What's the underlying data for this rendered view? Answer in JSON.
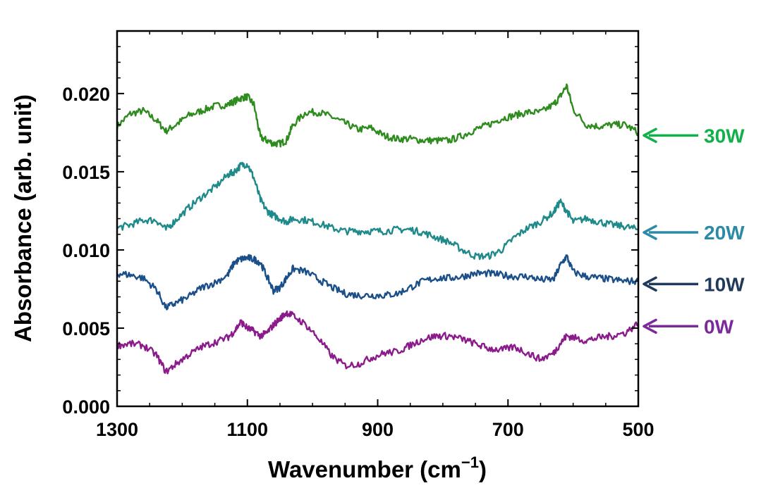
{
  "chart_data": {
    "type": "line",
    "xlabel": "Wavenumber (cm",
    "xlabel_sup": "−1",
    "xlabel_close": ")",
    "ylabel": "Absorbance (arb. unit)",
    "xlim": [
      1300,
      500
    ],
    "ylim": [
      0,
      0.024
    ],
    "x_reversed": true,
    "x_ticks": [
      1300,
      1100,
      900,
      700,
      500
    ],
    "x_tick_labels": [
      "1300",
      "1100",
      "900",
      "700",
      "500"
    ],
    "y_ticks": [
      0,
      0.005,
      0.01,
      0.015,
      0.02
    ],
    "y_tick_labels": [
      "0.000",
      "0.005",
      "0.010",
      "0.015",
      "0.020"
    ],
    "grid": false,
    "legend": "right-side labels with arrows",
    "x": [
      1300,
      1280,
      1260,
      1240,
      1225,
      1210,
      1190,
      1170,
      1150,
      1130,
      1120,
      1110,
      1100,
      1090,
      1080,
      1070,
      1060,
      1050,
      1040,
      1030,
      1010,
      990,
      970,
      950,
      930,
      910,
      890,
      870,
      850,
      830,
      810,
      790,
      770,
      750,
      730,
      710,
      690,
      670,
      650,
      630,
      620,
      610,
      600,
      580,
      560,
      540,
      520,
      500
    ],
    "series": [
      {
        "name": "30W",
        "color": "#2e8b1e",
        "label_color": "#12b04a",
        "values": [
          0.0179,
          0.0187,
          0.0189,
          0.0183,
          0.0176,
          0.018,
          0.0186,
          0.0189,
          0.0192,
          0.0193,
          0.0195,
          0.0197,
          0.0198,
          0.0193,
          0.0172,
          0.017,
          0.0168,
          0.0168,
          0.017,
          0.018,
          0.0188,
          0.0188,
          0.0185,
          0.0181,
          0.0177,
          0.0178,
          0.0173,
          0.0171,
          0.0171,
          0.017,
          0.017,
          0.017,
          0.0173,
          0.0177,
          0.018,
          0.0184,
          0.0186,
          0.0188,
          0.0188,
          0.0193,
          0.0198,
          0.0205,
          0.019,
          0.018,
          0.0179,
          0.018,
          0.018,
          0.0175
        ]
      },
      {
        "name": "20W",
        "color": "#1f8a8a",
        "label_color": "#2b8ba6",
        "values": [
          0.0114,
          0.0116,
          0.0119,
          0.0119,
          0.0113,
          0.0119,
          0.0127,
          0.0134,
          0.014,
          0.0148,
          0.015,
          0.0154,
          0.0155,
          0.0146,
          0.0132,
          0.0125,
          0.0122,
          0.012,
          0.0118,
          0.012,
          0.0119,
          0.0117,
          0.0114,
          0.0112,
          0.0112,
          0.0112,
          0.0112,
          0.0113,
          0.0113,
          0.0111,
          0.0108,
          0.0105,
          0.01,
          0.0096,
          0.0096,
          0.01,
          0.0108,
          0.0114,
          0.0118,
          0.0124,
          0.0131,
          0.0125,
          0.0118,
          0.012,
          0.0118,
          0.0116,
          0.0115,
          0.0113
        ]
      },
      {
        "name": "10W",
        "color": "#1a4f8a",
        "label_color": "#1f3a5c",
        "values": [
          0.0085,
          0.0084,
          0.0082,
          0.0075,
          0.0063,
          0.0066,
          0.007,
          0.0076,
          0.0079,
          0.0084,
          0.0092,
          0.0094,
          0.0095,
          0.0094,
          0.0092,
          0.0083,
          0.0074,
          0.0076,
          0.0082,
          0.0088,
          0.0086,
          0.0081,
          0.0076,
          0.0072,
          0.0071,
          0.0071,
          0.0071,
          0.0072,
          0.0076,
          0.008,
          0.0082,
          0.0082,
          0.0083,
          0.0085,
          0.0085,
          0.0084,
          0.0083,
          0.0083,
          0.0081,
          0.0081,
          0.009,
          0.0096,
          0.0086,
          0.0083,
          0.0082,
          0.0081,
          0.008,
          0.008
        ]
      },
      {
        "name": "0W",
        "color": "#8b1a8b",
        "label_color": "#7a2a9a",
        "values": [
          0.0039,
          0.004,
          0.0039,
          0.0033,
          0.0022,
          0.0027,
          0.0033,
          0.0038,
          0.0041,
          0.0044,
          0.0048,
          0.0054,
          0.005,
          0.0048,
          0.0045,
          0.0047,
          0.0052,
          0.0056,
          0.006,
          0.0058,
          0.0052,
          0.0043,
          0.0032,
          0.0026,
          0.0027,
          0.0031,
          0.0034,
          0.0035,
          0.0039,
          0.0043,
          0.0045,
          0.0045,
          0.0043,
          0.004,
          0.0037,
          0.0036,
          0.0038,
          0.0034,
          0.003,
          0.0034,
          0.004,
          0.0045,
          0.0044,
          0.0042,
          0.0044,
          0.0045,
          0.0047,
          0.0053
        ]
      }
    ]
  }
}
